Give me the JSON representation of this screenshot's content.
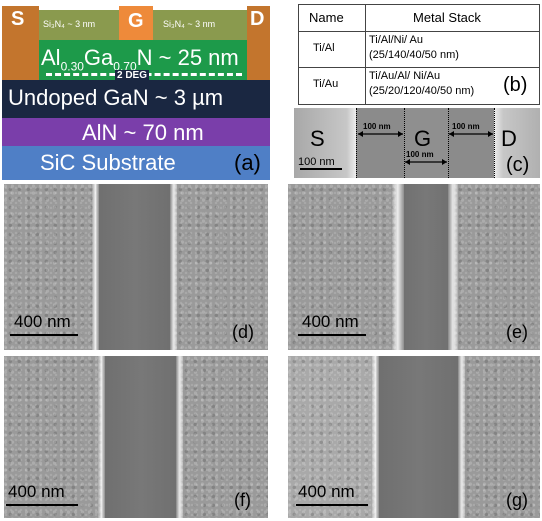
{
  "panel_a": {
    "label": "(a)",
    "source": "S",
    "drain": "D",
    "gate": "G",
    "sin_left": "Si₃N₄ ~ 3 nm",
    "sin_right": "Si₃N₄ ~ 3 nm",
    "barrier_prefix": "Al",
    "barrier_al_sub": "0.30",
    "barrier_mid": "Ga",
    "barrier_ga_sub": "0.70",
    "barrier_suffix": "N ~ 25 nm",
    "deg": "2 DEG",
    "gan": "Undoped GaN ~ 3 µm",
    "aln": "AlN  ~ 70 nm",
    "substrate": "SiC  Substrate"
  },
  "panel_b": {
    "label": "(b)",
    "header_name": "Name",
    "header_stack": "Metal Stack",
    "rows": [
      {
        "name": "Ti/Al",
        "stack_1": "Ti/Al/Ni/ Au",
        "stack_2": "(25/140/40/50 nm)"
      },
      {
        "name": "Ti/Au",
        "stack_1": "Ti/Au/Al/ Ni/Au",
        "stack_2": "(25/20/120/40/50 nm)"
      }
    ]
  },
  "panel_c": {
    "label": "(c)",
    "source": "S",
    "gate": "G",
    "drain": "D",
    "gap_left": "100 nm",
    "gate_width": "100 nm",
    "gap_right": "100 nm",
    "scale": "100 nm"
  },
  "sem_panels": [
    {
      "label": "(d)",
      "scale": "400 nm"
    },
    {
      "label": "(e)",
      "scale": "400 nm"
    },
    {
      "label": "(f)",
      "scale": "400 nm"
    },
    {
      "label": "(g)",
      "scale": "400 nm"
    }
  ]
}
